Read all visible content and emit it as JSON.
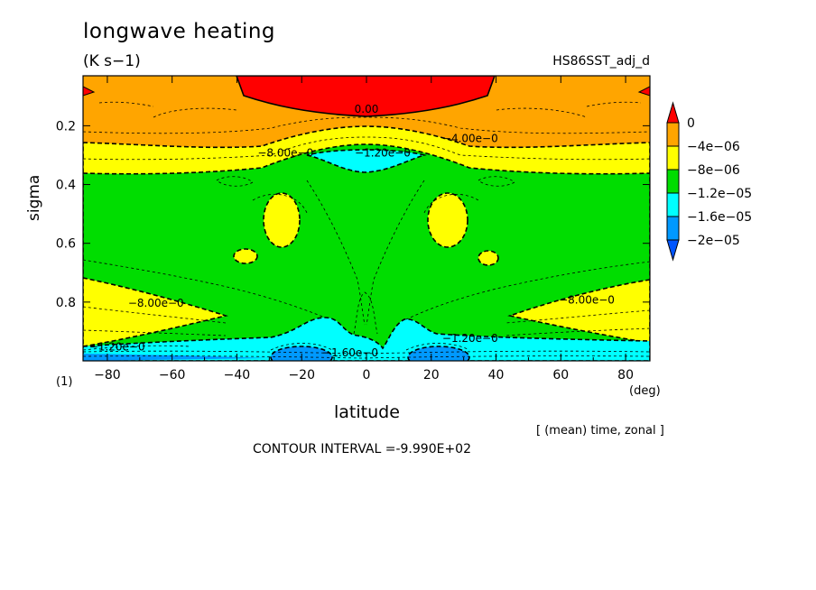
{
  "chart_data": {
    "type": "heatmap",
    "title": "longwave heating",
    "subtitle": "(K s−1)",
    "dataset_label": "HS86SST_adj_d",
    "xlabel": "latitude",
    "x_unit": "(deg)",
    "ylabel": "sigma",
    "corner_label": "(1)",
    "averaging_note": "[ (mean) time, zonal ]",
    "contour_interval_text": "CONTOUR INTERVAL =-9.990E+02",
    "xlim": [
      -87.5,
      87.5
    ],
    "ylim": [
      1.0,
      0.03
    ],
    "x_ticks": [
      -80,
      -60,
      -40,
      -20,
      0,
      20,
      40,
      60,
      80
    ],
    "x_tick_labels": [
      "−80",
      "−60",
      "−40",
      "−20",
      "0",
      "20",
      "40",
      "60",
      "80"
    ],
    "y_ticks": [
      0.2,
      0.4,
      0.6,
      0.8
    ],
    "y_tick_labels": [
      "0.2",
      "0.4",
      "0.6",
      "0.8"
    ],
    "colorbar": {
      "levels": [
        0,
        -4e-06,
        -8e-06,
        -1.2e-05,
        -1.6e-05,
        -2e-05
      ],
      "labels": [
        "0",
        "−4e−06",
        "−8e−06",
        "−1.2e−05",
        "−1.6e−05",
        "−2e−05"
      ],
      "colors": [
        "#ff0000",
        "#ffa500",
        "#ffff00",
        "#00dd00",
        "#00ffff",
        "#0099ff",
        "#0055ff"
      ]
    },
    "contour_labels": [
      {
        "text": "0.00",
        "x": 0,
        "y": 0.14
      },
      {
        "text": "−4.00e−0",
        "x": 32,
        "y": 0.24
      },
      {
        "text": "−8.00e−0",
        "x": -25,
        "y": 0.29
      },
      {
        "text": "−1.20e−0",
        "x": 5,
        "y": 0.29
      },
      {
        "text": "−8.00e−0",
        "x": -65,
        "y": 0.8
      },
      {
        "text": "−8.00e−0",
        "x": 68,
        "y": 0.79
      },
      {
        "text": "−1.20e−0",
        "x": 32,
        "y": 0.92
      },
      {
        "text": "−1.20e−0",
        "x": -77,
        "y": 0.95
      },
      {
        "text": "−1.60e−0",
        "x": -5,
        "y": 0.97
      }
    ],
    "regions": [
      {
        "level": "0 to −4e−06",
        "color": "#ffa500",
        "desc": "upper atmosphere background",
        "x": [
          -87.5,
          87.5
        ],
        "y": [
          0.03,
          0.25
        ]
      },
      {
        "level": "> 0",
        "color": "#ff0000",
        "x": [
          -40,
          40
        ],
        "y": [
          0.03,
          0.14
        ]
      },
      {
        "level": "> 0",
        "color": "#ff0000",
        "x": [
          -87.5,
          -84
        ],
        "y": [
          0.06,
          0.08
        ]
      },
      {
        "level": "> 0",
        "color": "#ff0000",
        "x": [
          84,
          87.5
        ],
        "y": [
          0.06,
          0.08
        ]
      },
      {
        "level": "−4e−06 to −8e−06",
        "color": "#ffff00",
        "x": [
          -87.5,
          87.5
        ],
        "y": [
          0.22,
          0.35
        ]
      },
      {
        "level": "−8e−06 to −1.2e−05",
        "color": "#00dd00",
        "x": [
          -87.5,
          87.5
        ],
        "y": [
          0.3,
          0.95
        ]
      },
      {
        "level": "−1.2e−05 to −1.6e−05",
        "color": "#00ffff",
        "x": [
          -13,
          13
        ],
        "y": [
          0.27,
          0.34
        ]
      },
      {
        "level": "−4e−06 to −8e−06",
        "color": "#ffff00",
        "x": [
          -38,
          -28
        ],
        "y": [
          0.42,
          0.61
        ]
      },
      {
        "level": "−4e−06 to −8e−06",
        "color": "#ffff00",
        "x": [
          20,
          32
        ],
        "y": [
          0.42,
          0.61
        ]
      },
      {
        "level": "−4e−06 to −8e−06",
        "color": "#ffff00",
        "x": [
          -42,
          -34
        ],
        "y": [
          0.64,
          0.68
        ]
      },
      {
        "level": "−4e−06 to −8e−06",
        "color": "#ffff00",
        "x": [
          34,
          42
        ],
        "y": [
          0.64,
          0.68
        ]
      },
      {
        "level": "−4e−06 to −8e−06",
        "color": "#ffff00",
        "x": [
          -87.5,
          -50
        ],
        "y": [
          0.71,
          0.94
        ]
      },
      {
        "level": "−4e−06 to −8e−06",
        "color": "#ffff00",
        "x": [
          45,
          87.5
        ],
        "y": [
          0.71,
          0.93
        ]
      },
      {
        "level": "−1.2e−05 to −1.6e−05",
        "color": "#00ffff",
        "x": [
          -87.5,
          87.5
        ],
        "y": [
          0.88,
          1.0
        ]
      },
      {
        "level": "−1.6e−05 to −2e−05",
        "color": "#0099ff",
        "x": [
          -35,
          -15
        ],
        "y": [
          0.95,
          1.0
        ]
      },
      {
        "level": "−1.6e−05 to −2e−05",
        "color": "#0099ff",
        "x": [
          15,
          35
        ],
        "y": [
          0.95,
          1.0
        ]
      }
    ]
  }
}
